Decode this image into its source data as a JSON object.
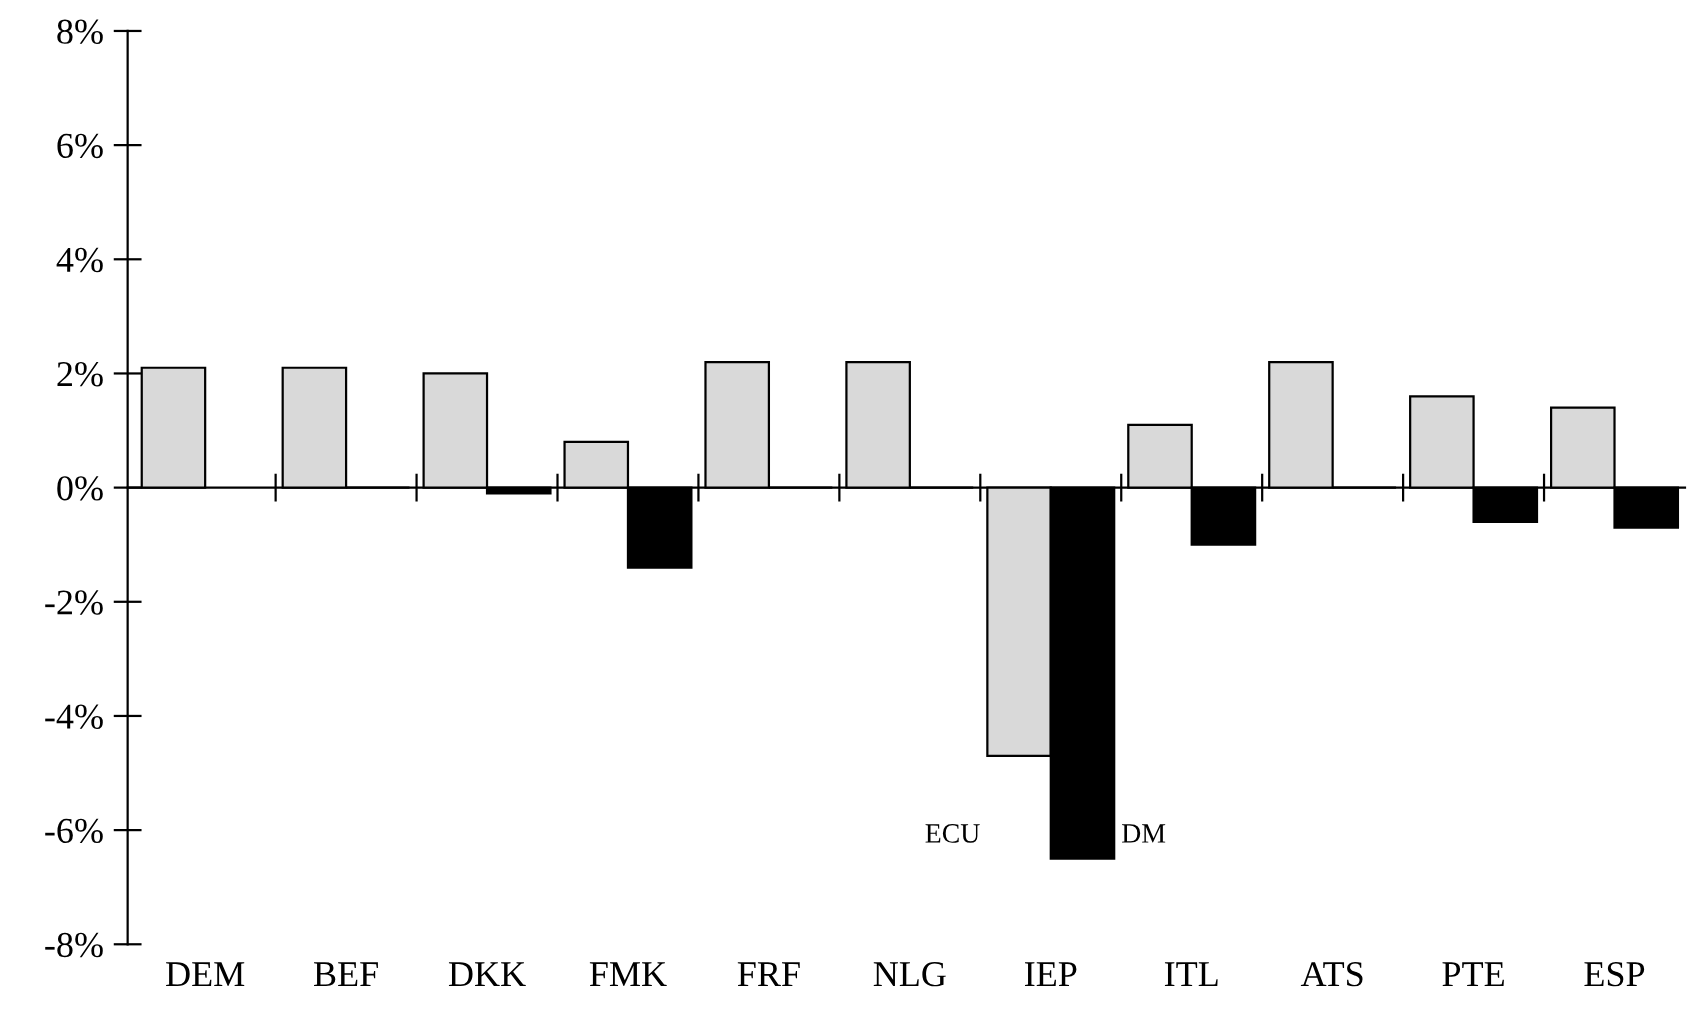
{
  "chart_data": {
    "type": "bar",
    "categories": [
      "DEM",
      "BEF",
      "DKK",
      "FMK",
      "FRF",
      "NLG",
      "IEP",
      "ITL",
      "ATS",
      "PTE",
      "ESP"
    ],
    "series": [
      {
        "name": "ECU",
        "color": "#d9d9d9",
        "values": [
          2.1,
          2.1,
          2.0,
          0.8,
          2.2,
          2.2,
          -4.7,
          1.1,
          2.2,
          1.6,
          1.4
        ]
      },
      {
        "name": "DM",
        "color": "#000000",
        "values": [
          null,
          0,
          -0.1,
          -1.4,
          0,
          0,
          -6.5,
          -1.0,
          0,
          -0.6,
          -0.7
        ]
      }
    ],
    "ylim": [
      -8,
      8
    ],
    "yticks": [
      {
        "value": -8,
        "label": "-8%"
      },
      {
        "value": -6,
        "label": "-6%"
      },
      {
        "value": -4,
        "label": "-4%"
      },
      {
        "value": -2,
        "label": "-2%"
      },
      {
        "value": 0,
        "label": "0%"
      },
      {
        "value": 2,
        "label": "2%"
      },
      {
        "value": 4,
        "label": "4%"
      },
      {
        "value": 6,
        "label": "6%"
      },
      {
        "value": 8,
        "label": "8%"
      }
    ],
    "legend": false
  }
}
